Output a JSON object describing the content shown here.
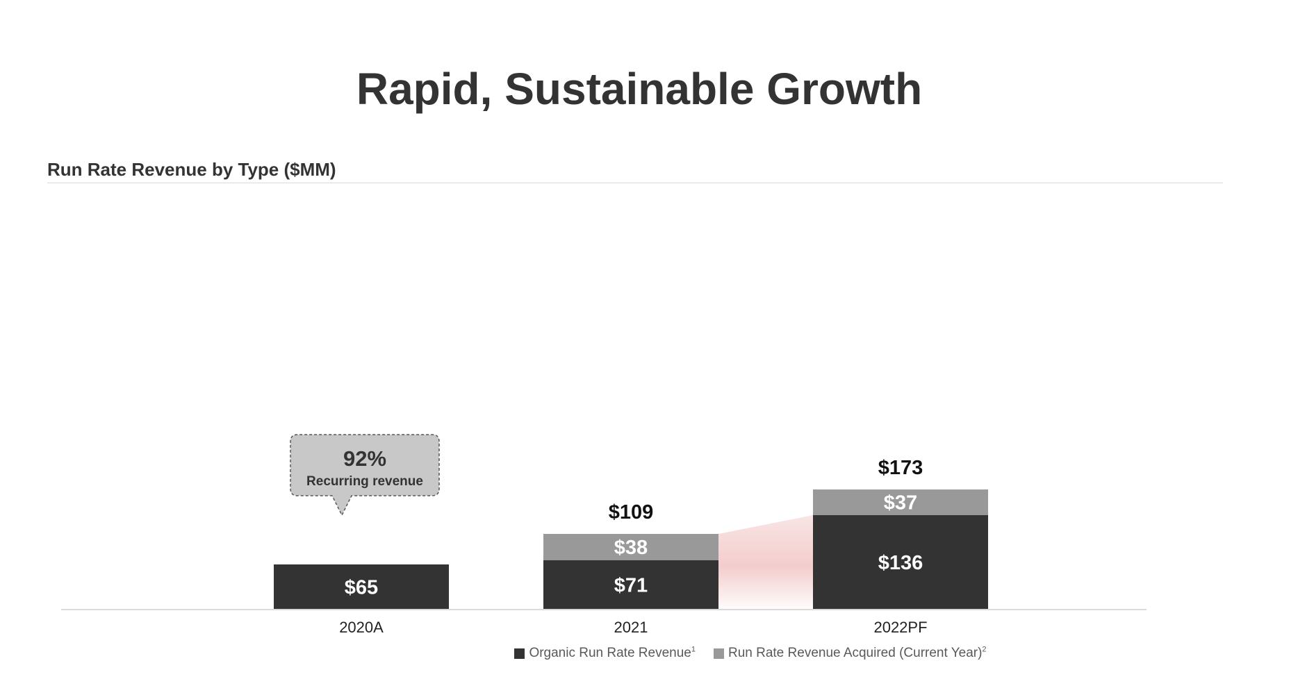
{
  "title": "Rapid, Sustainable Growth",
  "section_header": "Run Rate Revenue by Type ($MM)",
  "callout": {
    "value": "92%",
    "label": "Recurring revenue"
  },
  "colors": {
    "organic": "#333333",
    "acquired": "#999999",
    "growth_band": "#f2c4c4",
    "text": "#333333",
    "legend_text": "#595959"
  },
  "legend": [
    {
      "label": "Organic Run Rate Revenue",
      "footnote": "1",
      "series": "organic"
    },
    {
      "label": "Run Rate Revenue Acquired (Current Year)",
      "footnote": "2",
      "series": "acquired"
    }
  ],
  "chart_data": {
    "type": "bar",
    "stacked": true,
    "categories": [
      "2020A",
      "2021",
      "2022PF"
    ],
    "series": [
      {
        "name": "Organic Run Rate Revenue",
        "values": [
          65,
          71,
          136
        ],
        "labels": [
          "$65",
          "$71",
          "$136"
        ]
      },
      {
        "name": "Run Rate Revenue Acquired (Current Year)",
        "values": [
          0,
          38,
          37
        ],
        "labels": [
          "",
          "$38",
          "$37"
        ]
      }
    ],
    "totals": [
      65,
      109,
      173
    ],
    "total_labels": [
      "",
      "$109",
      "$173"
    ],
    "ylim": [
      0,
      200
    ],
    "grid": false,
    "legend_position": "bottom",
    "title": "",
    "xlabel": "",
    "ylabel": ""
  }
}
